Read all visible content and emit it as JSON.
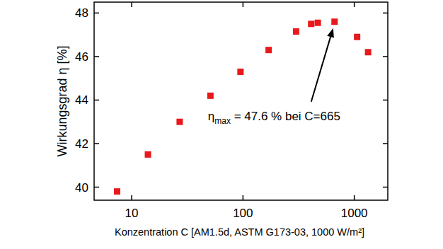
{
  "chart_data": {
    "type": "scatter",
    "x_label": "Konzentration C [AM1.5d, ASTM G173-03, 1000 W/m²]",
    "y_label": "Wirkungsgrad η [%]",
    "series": [
      {
        "name": "Wirkungsgrad",
        "color": "#e8191c",
        "marker": "square",
        "x": [
          7.4,
          14,
          27,
          51,
          95,
          170,
          300,
          410,
          470,
          665,
          1060,
          1330
        ],
        "values": [
          39.8,
          41.5,
          43.0,
          44.2,
          45.3,
          46.3,
          47.15,
          47.5,
          47.55,
          47.6,
          46.9,
          46.2
        ]
      }
    ],
    "xlim": [
      4.6,
      2000
    ],
    "ylim": [
      39.4,
      48.5
    ],
    "xticks": [
      10,
      100,
      1000
    ],
    "yticks": [
      40,
      42,
      44,
      46,
      48
    ],
    "log": "x",
    "grid": false,
    "annotations": [
      {
        "symbol": "η",
        "subscript": "max",
        "text": " = 47.6 % bei C=665",
        "x": 665,
        "y": 47.6
      }
    ]
  }
}
